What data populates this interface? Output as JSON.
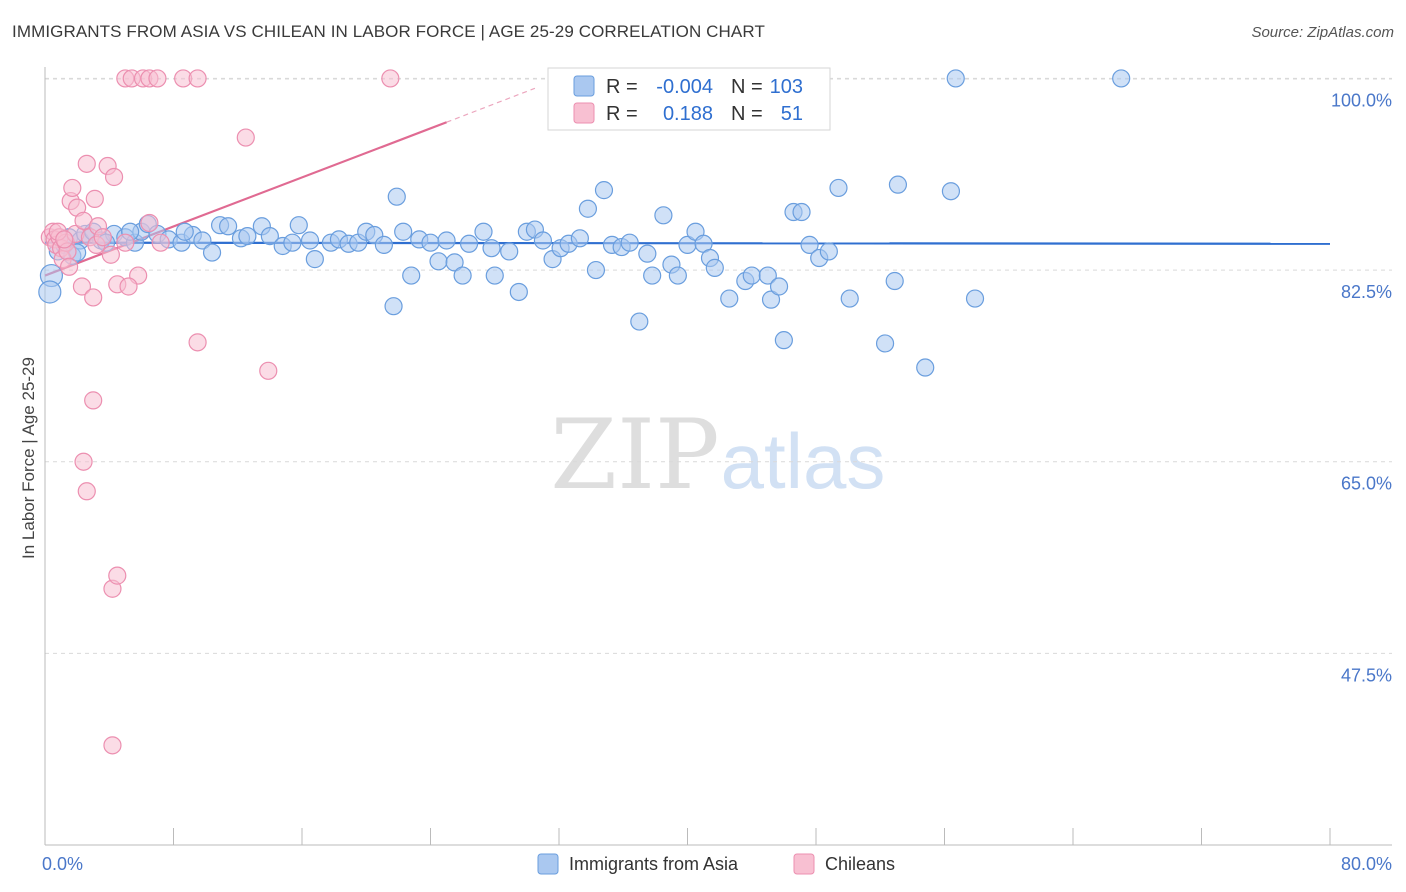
{
  "title": "IMMIGRANTS FROM ASIA VS CHILEAN IN LABOR FORCE | AGE 25-29 CORRELATION CHART",
  "source": "Source: ZipAtlas.com",
  "watermark": {
    "zip": "ZIP",
    "atlas": "atlas"
  },
  "colors": {
    "asia_fill": "#aac8f0",
    "asia_stroke": "#6a9ede",
    "asia_line": "#2f6fd0",
    "chile_fill": "#f8c0d2",
    "chile_stroke": "#ec8fb0",
    "chile_line": "#e06a92",
    "grid": "#d9d9d9",
    "axis_text": "#4a77c9"
  },
  "stats": {
    "asia": {
      "r_label": "R =",
      "r": "-0.004",
      "n_label": "N =",
      "n": "103"
    },
    "chile": {
      "r_label": "R =",
      "r": "0.188",
      "n_label": "N =",
      "n": "51"
    }
  },
  "chart_data": {
    "type": "scatter",
    "xlabel": "",
    "ylabel": "In Labor Force | Age 25-29",
    "xlim": [
      0,
      80
    ],
    "ylim": [
      30,
      101.5
    ],
    "x_tick_labels": [
      "0.0%",
      "80.0%"
    ],
    "y_ticks": [
      47.5,
      65.0,
      82.5,
      100.0
    ],
    "y_tick_labels": [
      "47.5%",
      "65.0%",
      "82.5%",
      "100.0%"
    ],
    "legend": [
      "Immigrants from Asia",
      "Chileans"
    ],
    "series": [
      {
        "name": "Immigrants from Asia",
        "trend": {
          "x": [
            0,
            80
          ],
          "y": [
            85.0,
            84.9
          ]
        },
        "points": [
          [
            0.4,
            82.0
          ],
          [
            0.3,
            80.5
          ],
          [
            0.8,
            84.2
          ],
          [
            1.2,
            84.8
          ],
          [
            1.5,
            85.5
          ],
          [
            1.7,
            83.8
          ],
          [
            2.2,
            85.2
          ],
          [
            2.5,
            85.8
          ],
          [
            3.0,
            86.0
          ],
          [
            3.5,
            85.2
          ],
          [
            4.3,
            85.8
          ],
          [
            5.0,
            85.5
          ],
          [
            5.6,
            85.0
          ],
          [
            6.0,
            86.0
          ],
          [
            6.4,
            86.7
          ],
          [
            7.0,
            85.8
          ],
          [
            7.7,
            85.3
          ],
          [
            8.5,
            85.0
          ],
          [
            9.2,
            85.7
          ],
          [
            9.8,
            85.2
          ],
          [
            10.4,
            84.1
          ],
          [
            10.9,
            86.6
          ],
          [
            11.4,
            86.5
          ],
          [
            12.2,
            85.4
          ],
          [
            12.6,
            85.6
          ],
          [
            13.5,
            86.5
          ],
          [
            14.0,
            85.6
          ],
          [
            14.8,
            84.7
          ],
          [
            15.4,
            85.0
          ],
          [
            15.8,
            86.6
          ],
          [
            16.5,
            85.2
          ],
          [
            16.8,
            83.5
          ],
          [
            17.8,
            85.0
          ],
          [
            18.3,
            85.3
          ],
          [
            18.9,
            84.9
          ],
          [
            19.5,
            85.0
          ],
          [
            20.0,
            86.0
          ],
          [
            20.5,
            85.7
          ],
          [
            21.1,
            84.8
          ],
          [
            21.7,
            79.2
          ],
          [
            21.9,
            89.2
          ],
          [
            22.3,
            86.0
          ],
          [
            22.8,
            82.0
          ],
          [
            23.3,
            85.3
          ],
          [
            24.0,
            85.0
          ],
          [
            24.5,
            83.3
          ],
          [
            25.0,
            85.2
          ],
          [
            25.5,
            83.2
          ],
          [
            26.0,
            82.0
          ],
          [
            26.4,
            84.9
          ],
          [
            27.3,
            86.0
          ],
          [
            27.8,
            84.5
          ],
          [
            28.0,
            82.0
          ],
          [
            28.9,
            84.2
          ],
          [
            29.5,
            80.5
          ],
          [
            30.0,
            86.0
          ],
          [
            30.5,
            86.2
          ],
          [
            31.0,
            85.2
          ],
          [
            31.6,
            83.5
          ],
          [
            32.1,
            84.5
          ],
          [
            32.6,
            84.9
          ],
          [
            33.3,
            85.4
          ],
          [
            33.8,
            88.1
          ],
          [
            34.3,
            82.5
          ],
          [
            34.8,
            89.8
          ],
          [
            35.3,
            84.8
          ],
          [
            35.9,
            84.6
          ],
          [
            36.4,
            85.0
          ],
          [
            37.0,
            77.8
          ],
          [
            37.5,
            84.0
          ],
          [
            37.8,
            82.0
          ],
          [
            38.5,
            87.5
          ],
          [
            39.0,
            83.0
          ],
          [
            39.4,
            82.0
          ],
          [
            40.0,
            84.8
          ],
          [
            40.5,
            86.0
          ],
          [
            41.0,
            84.9
          ],
          [
            41.4,
            83.6
          ],
          [
            41.7,
            82.7
          ],
          [
            42.6,
            79.9
          ],
          [
            43.6,
            81.5
          ],
          [
            44.0,
            82.0
          ],
          [
            45.0,
            82.0
          ],
          [
            45.2,
            79.8
          ],
          [
            45.7,
            81.0
          ],
          [
            46.0,
            76.1
          ],
          [
            46.6,
            87.8
          ],
          [
            47.1,
            87.8
          ],
          [
            47.6,
            84.8
          ],
          [
            48.2,
            83.6
          ],
          [
            48.8,
            84.2
          ],
          [
            49.4,
            90.0
          ],
          [
            50.1,
            79.9
          ],
          [
            52.3,
            75.8
          ],
          [
            52.9,
            81.5
          ],
          [
            53.1,
            90.3
          ],
          [
            54.8,
            73.6
          ],
          [
            56.4,
            89.7
          ],
          [
            57.9,
            79.9
          ],
          [
            56.7,
            100.0
          ],
          [
            67.0,
            100.0
          ],
          [
            5.3,
            86.0
          ],
          [
            8.7,
            86.0
          ],
          [
            3.8,
            85.0
          ],
          [
            2.0,
            84.1
          ]
        ]
      },
      {
        "name": "Chileans",
        "trend": {
          "x": [
            0,
            25
          ],
          "y": [
            82.0,
            96.0
          ]
        },
        "trend_ext": {
          "x": [
            25,
            30.5
          ],
          "y": [
            96.0,
            99.1
          ]
        },
        "points": [
          [
            0.3,
            85.5
          ],
          [
            0.5,
            86.0
          ],
          [
            0.6,
            85.3
          ],
          [
            0.7,
            84.8
          ],
          [
            0.9,
            85.5
          ],
          [
            1.0,
            84.5
          ],
          [
            1.1,
            83.5
          ],
          [
            1.3,
            85.0
          ],
          [
            1.4,
            84.2
          ],
          [
            1.5,
            82.8
          ],
          [
            1.6,
            88.8
          ],
          [
            1.7,
            90.0
          ],
          [
            1.9,
            85.8
          ],
          [
            2.0,
            88.2
          ],
          [
            2.3,
            81.0
          ],
          [
            2.4,
            87.0
          ],
          [
            2.6,
            92.2
          ],
          [
            2.8,
            85.5
          ],
          [
            3.0,
            80.0
          ],
          [
            3.1,
            89.0
          ],
          [
            3.2,
            84.8
          ],
          [
            3.3,
            86.5
          ],
          [
            3.6,
            85.5
          ],
          [
            3.9,
            92.0
          ],
          [
            4.1,
            83.9
          ],
          [
            4.3,
            91.0
          ],
          [
            4.5,
            81.2
          ],
          [
            5.0,
            85.0
          ],
          [
            6.5,
            86.8
          ],
          [
            7.2,
            85.0
          ],
          [
            2.4,
            65.0
          ],
          [
            2.6,
            62.3
          ],
          [
            3.0,
            70.6
          ],
          [
            4.2,
            53.4
          ],
          [
            4.5,
            54.6
          ],
          [
            4.2,
            39.1
          ],
          [
            5.8,
            82.0
          ],
          [
            9.5,
            75.9
          ],
          [
            13.9,
            73.3
          ],
          [
            12.5,
            94.6
          ],
          [
            5.0,
            100.0
          ],
          [
            5.4,
            100.0
          ],
          [
            6.1,
            100.0
          ],
          [
            6.5,
            100.0
          ],
          [
            7.0,
            100.0
          ],
          [
            8.6,
            100.0
          ],
          [
            9.5,
            100.0
          ],
          [
            21.5,
            100.0
          ],
          [
            5.2,
            81.0
          ],
          [
            0.8,
            86.0
          ],
          [
            1.2,
            85.3
          ]
        ]
      }
    ]
  }
}
